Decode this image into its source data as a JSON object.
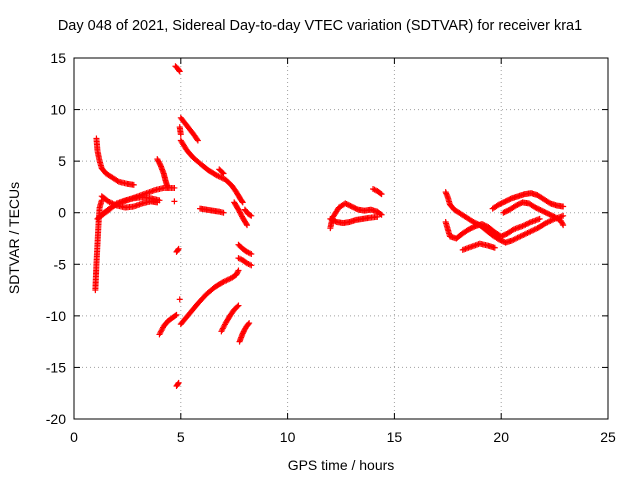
{
  "chart_data": {
    "type": "scatter",
    "title": "Day 048 of 2021, Sidereal Day-to-day VTEC variation (SDTVAR) for receiver kra1",
    "xlabel": "GPS time / hours",
    "ylabel": "SDTVAR / TECUs",
    "xlim": [
      0,
      25
    ],
    "ylim": [
      -20,
      15
    ],
    "xticks": [
      "0",
      "5",
      "10",
      "15",
      "20",
      "25"
    ],
    "yticks": [
      "-20",
      "-15",
      "-10",
      "-5",
      "0",
      "5",
      "10",
      "15"
    ],
    "grid": true,
    "marker": "plus",
    "color": "#ff0000",
    "segments": [
      [
        [
          1.0,
          -7.5
        ],
        [
          1.05,
          -5.0
        ],
        [
          1.1,
          -3.0
        ],
        [
          1.15,
          -1.0
        ],
        [
          1.2,
          0.5
        ],
        [
          1.3,
          1.2
        ]
      ],
      [
        [
          1.05,
          7.2
        ],
        [
          1.1,
          6.0
        ],
        [
          1.2,
          5.0
        ],
        [
          1.3,
          4.3
        ],
        [
          1.5,
          3.8
        ],
        [
          1.8,
          3.4
        ],
        [
          2.1,
          3.0
        ],
        [
          2.5,
          2.8
        ],
        [
          2.8,
          2.7
        ]
      ],
      [
        [
          1.1,
          -0.6
        ],
        [
          1.4,
          0.0
        ],
        [
          1.8,
          0.6
        ],
        [
          2.2,
          1.0
        ],
        [
          2.6,
          1.3
        ],
        [
          3.0,
          1.6
        ],
        [
          3.4,
          1.9
        ],
        [
          3.8,
          2.2
        ],
        [
          4.2,
          2.4
        ],
        [
          4.7,
          2.4
        ]
      ],
      [
        [
          1.3,
          1.6
        ],
        [
          1.6,
          1.1
        ],
        [
          2.0,
          0.7
        ],
        [
          2.4,
          0.5
        ],
        [
          2.8,
          0.6
        ],
        [
          3.2,
          0.9
        ],
        [
          3.6,
          1.1
        ],
        [
          3.9,
          1.0
        ]
      ],
      [
        [
          1.2,
          -0.4
        ],
        [
          1.6,
          0.2
        ],
        [
          2.0,
          0.9
        ],
        [
          2.4,
          1.2
        ],
        [
          2.8,
          1.4
        ],
        [
          3.2,
          1.5
        ],
        [
          3.6,
          1.4
        ],
        [
          4.0,
          1.2
        ]
      ],
      [
        [
          3.9,
          5.2
        ],
        [
          4.05,
          4.6
        ],
        [
          4.2,
          3.8
        ],
        [
          4.3,
          3.0
        ],
        [
          4.4,
          2.4
        ]
      ],
      [
        [
          4.0,
          -11.8
        ],
        [
          4.2,
          -11.0
        ],
        [
          4.4,
          -10.5
        ],
        [
          4.6,
          -10.2
        ],
        [
          4.8,
          -9.9
        ]
      ],
      [
        [
          4.75,
          14.2
        ],
        [
          4.85,
          14.0
        ],
        [
          4.95,
          13.7
        ]
      ],
      [
        [
          4.8,
          -16.8
        ],
        [
          4.9,
          -16.5
        ]
      ],
      [
        [
          4.8,
          -3.8
        ],
        [
          4.9,
          -3.5
        ]
      ],
      [
        [
          4.95,
          8.3
        ],
        [
          5.0,
          7.6
        ]
      ],
      [
        [
          5.0,
          9.2
        ],
        [
          5.3,
          8.4
        ],
        [
          5.6,
          7.6
        ],
        [
          5.8,
          7.0
        ]
      ],
      [
        [
          5.0,
          7.0
        ],
        [
          5.3,
          6.0
        ],
        [
          5.6,
          5.3
        ],
        [
          6.0,
          4.6
        ],
        [
          6.3,
          4.1
        ],
        [
          6.7,
          3.6
        ],
        [
          7.1,
          3.2
        ],
        [
          7.4,
          2.6
        ],
        [
          7.6,
          2.0
        ],
        [
          7.8,
          1.3
        ],
        [
          7.9,
          1.0
        ]
      ],
      [
        [
          5.0,
          -10.8
        ],
        [
          5.4,
          -9.8
        ],
        [
          5.8,
          -8.8
        ],
        [
          6.2,
          -7.9
        ],
        [
          6.6,
          -7.2
        ],
        [
          7.0,
          -6.7
        ],
        [
          7.4,
          -6.3
        ],
        [
          7.6,
          -6.0
        ],
        [
          7.7,
          -5.6
        ]
      ],
      [
        [
          5.9,
          0.4
        ],
        [
          6.2,
          0.3
        ],
        [
          6.5,
          0.2
        ],
        [
          6.8,
          0.1
        ],
        [
          7.0,
          0.0
        ]
      ],
      [
        [
          6.8,
          4.2
        ],
        [
          7.0,
          3.8
        ]
      ],
      [
        [
          6.9,
          -11.5
        ],
        [
          7.1,
          -10.7
        ],
        [
          7.3,
          -10.0
        ],
        [
          7.5,
          -9.4
        ],
        [
          7.7,
          -9.0
        ]
      ],
      [
        [
          7.5,
          1.0
        ],
        [
          7.7,
          0.3
        ],
        [
          7.9,
          -0.5
        ],
        [
          8.1,
          -1.2
        ]
      ],
      [
        [
          7.7,
          -3.1
        ],
        [
          7.9,
          -3.5
        ],
        [
          8.1,
          -3.8
        ],
        [
          8.3,
          -4.0
        ]
      ],
      [
        [
          7.7,
          -4.4
        ],
        [
          7.9,
          -4.6
        ],
        [
          8.1,
          -4.9
        ],
        [
          8.3,
          -5.1
        ]
      ],
      [
        [
          7.75,
          -12.5
        ],
        [
          7.9,
          -11.7
        ],
        [
          8.05,
          -11.1
        ],
        [
          8.2,
          -10.7
        ]
      ],
      [
        [
          8.0,
          0.3
        ],
        [
          8.15,
          -0.1
        ],
        [
          8.3,
          -0.3
        ]
      ],
      [
        [
          12.0,
          -1.5
        ],
        [
          12.1,
          -0.5
        ],
        [
          12.4,
          0.5
        ],
        [
          12.7,
          0.9
        ],
        [
          13.0,
          0.6
        ],
        [
          13.3,
          0.3
        ],
        [
          13.6,
          0.2
        ],
        [
          13.9,
          0.3
        ],
        [
          14.2,
          0.1
        ],
        [
          14.4,
          -0.2
        ]
      ],
      [
        [
          12.0,
          -0.6
        ],
        [
          12.3,
          -0.9
        ],
        [
          12.6,
          -1.0
        ],
        [
          12.9,
          -0.9
        ],
        [
          13.2,
          -0.7
        ],
        [
          13.5,
          -0.6
        ],
        [
          13.8,
          -0.5
        ],
        [
          14.2,
          -0.4
        ]
      ],
      [
        [
          14.0,
          2.3
        ],
        [
          14.2,
          2.1
        ],
        [
          14.4,
          1.8
        ]
      ],
      [
        [
          17.4,
          2.0
        ],
        [
          17.5,
          1.5
        ],
        [
          17.6,
          0.8
        ],
        [
          17.8,
          0.3
        ],
        [
          18.1,
          -0.1
        ],
        [
          18.4,
          -0.5
        ],
        [
          18.7,
          -0.9
        ],
        [
          19.0,
          -1.2
        ],
        [
          19.3,
          -1.7
        ],
        [
          19.6,
          -2.2
        ],
        [
          19.9,
          -2.6
        ],
        [
          20.2,
          -2.9
        ],
        [
          20.5,
          -2.7
        ],
        [
          20.9,
          -2.3
        ],
        [
          21.3,
          -1.9
        ],
        [
          21.7,
          -1.5
        ],
        [
          22.1,
          -1.0
        ],
        [
          22.5,
          -0.6
        ],
        [
          22.9,
          -0.3
        ]
      ],
      [
        [
          17.4,
          -0.9
        ],
        [
          17.6,
          -2.3
        ],
        [
          17.9,
          -2.5
        ],
        [
          18.2,
          -2.0
        ],
        [
          18.5,
          -1.6
        ],
        [
          18.8,
          -1.3
        ],
        [
          19.1,
          -1.1
        ],
        [
          19.4,
          -1.4
        ],
        [
          19.7,
          -1.9
        ],
        [
          20.0,
          -2.3
        ],
        [
          20.3,
          -2.0
        ],
        [
          20.6,
          -1.6
        ],
        [
          21.0,
          -1.3
        ],
        [
          21.4,
          -0.9
        ],
        [
          21.8,
          -0.6
        ]
      ],
      [
        [
          18.2,
          -3.6
        ],
        [
          18.6,
          -3.3
        ],
        [
          19.0,
          -3.0
        ],
        [
          19.4,
          -3.2
        ],
        [
          19.7,
          -3.4
        ]
      ],
      [
        [
          19.6,
          0.4
        ],
        [
          19.9,
          0.8
        ],
        [
          20.2,
          1.1
        ],
        [
          20.5,
          1.4
        ],
        [
          20.8,
          1.6
        ],
        [
          21.1,
          1.8
        ],
        [
          21.4,
          1.9
        ],
        [
          21.7,
          1.7
        ],
        [
          22.0,
          1.3
        ],
        [
          22.3,
          0.9
        ],
        [
          22.6,
          0.7
        ],
        [
          22.9,
          0.6
        ]
      ],
      [
        [
          20.1,
          0.0
        ],
        [
          20.4,
          0.3
        ],
        [
          20.7,
          0.7
        ],
        [
          21.0,
          1.0
        ],
        [
          21.3,
          0.9
        ],
        [
          21.6,
          0.5
        ],
        [
          21.9,
          0.2
        ],
        [
          22.2,
          -0.1
        ],
        [
          22.5,
          -0.4
        ],
        [
          22.8,
          -0.8
        ],
        [
          22.9,
          -1.2
        ]
      ]
    ],
    "isolated_points": [
      [
        4.7,
        1.1
      ],
      [
        4.95,
        -8.4
      ]
    ]
  }
}
